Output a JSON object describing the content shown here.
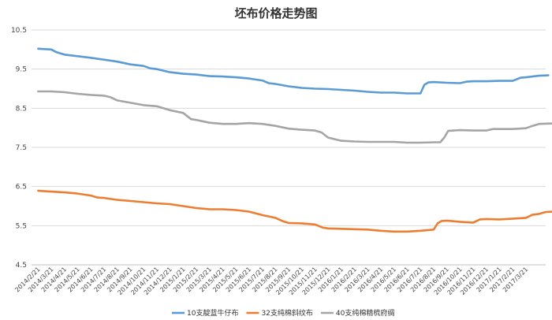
{
  "chart_data": {
    "type": "line",
    "title": "坯布价格走势图",
    "xlabel": "",
    "ylabel": "",
    "ylim": [
      4.5,
      10.5
    ],
    "yticks": [
      4.5,
      5.5,
      6.5,
      7.5,
      8.5,
      9.5,
      10.5
    ],
    "grid": "horizontal",
    "legend": "bottom",
    "x_tick_labels": [
      "2014/2/21",
      "2014/3/21",
      "2014/4/21",
      "2014/5/21",
      "2014/6/21",
      "2014/7/21",
      "2014/8/21",
      "2014/9/21",
      "2014/10/21",
      "2014/11/21",
      "2014/12/21",
      "2015/1/21",
      "2015/2/21",
      "2015/3/21",
      "2015/4/21",
      "2015/5/21",
      "2015/6/21",
      "2015/7/21",
      "2015/8/21",
      "2015/9/21",
      "2015/10/21",
      "2015/11/21",
      "2015/12/21",
      "2016/1/21",
      "2016/2/21",
      "2016/3/21",
      "2016/4/21",
      "2016/5/21",
      "2016/6/21",
      "2016/7/21",
      "2016/8/21",
      "2016/9/21",
      "2016/10/21",
      "2016/11/21",
      "2016/12/21",
      "2017/1/21",
      "2017/2/21",
      "2017/3/21"
    ],
    "series": [
      {
        "name": "10支靛蓝牛仔布",
        "color": "#5b9bd5",
        "points": [
          [
            0,
            10.02
          ],
          [
            1,
            10.0
          ],
          [
            1.4,
            9.93
          ],
          [
            2,
            9.87
          ],
          [
            3,
            9.83
          ],
          [
            4,
            9.79
          ],
          [
            4.6,
            9.76
          ],
          [
            5,
            9.74
          ],
          [
            6,
            9.69
          ],
          [
            7,
            9.62
          ],
          [
            8,
            9.58
          ],
          [
            8.5,
            9.52
          ],
          [
            9,
            9.5
          ],
          [
            10,
            9.42
          ],
          [
            11,
            9.38
          ],
          [
            12,
            9.36
          ],
          [
            13,
            9.32
          ],
          [
            14,
            9.31
          ],
          [
            15,
            9.29
          ],
          [
            16,
            9.26
          ],
          [
            17,
            9.21
          ],
          [
            17.5,
            9.14
          ],
          [
            18,
            9.12
          ],
          [
            19,
            9.06
          ],
          [
            20,
            9.02
          ],
          [
            21,
            9.0
          ],
          [
            22,
            8.99
          ],
          [
            23,
            8.97
          ],
          [
            24,
            8.95
          ],
          [
            25,
            8.92
          ],
          [
            26,
            8.9
          ],
          [
            27,
            8.9
          ],
          [
            28,
            8.88
          ],
          [
            29,
            8.88
          ],
          [
            29.3,
            9.1
          ],
          [
            29.6,
            9.16
          ],
          [
            30,
            9.17
          ],
          [
            31,
            9.15
          ],
          [
            32,
            9.14
          ],
          [
            32.5,
            9.18
          ],
          [
            33,
            9.19
          ],
          [
            34,
            9.19
          ],
          [
            35,
            9.2
          ],
          [
            36,
            9.2
          ],
          [
            36.6,
            9.28
          ],
          [
            37,
            9.29
          ],
          [
            38,
            9.33
          ],
          [
            38.7,
            9.34
          ]
        ]
      },
      {
        "name": "32支纯棉斜纹布",
        "color": "#ed7d31",
        "points": [
          [
            0,
            6.39
          ],
          [
            1,
            6.37
          ],
          [
            2,
            6.35
          ],
          [
            3,
            6.32
          ],
          [
            4,
            6.27
          ],
          [
            4.5,
            6.22
          ],
          [
            5,
            6.21
          ],
          [
            6,
            6.16
          ],
          [
            7,
            6.13
          ],
          [
            8,
            6.1
          ],
          [
            9,
            6.07
          ],
          [
            10,
            6.05
          ],
          [
            11,
            6.0
          ],
          [
            12,
            5.95
          ],
          [
            13,
            5.92
          ],
          [
            14,
            5.92
          ],
          [
            15,
            5.9
          ],
          [
            16,
            5.86
          ],
          [
            17,
            5.77
          ],
          [
            18,
            5.7
          ],
          [
            18.6,
            5.61
          ],
          [
            19,
            5.57
          ],
          [
            20,
            5.56
          ],
          [
            21,
            5.53
          ],
          [
            21.6,
            5.45
          ],
          [
            22,
            5.43
          ],
          [
            23,
            5.42
          ],
          [
            24,
            5.41
          ],
          [
            25,
            5.4
          ],
          [
            26,
            5.37
          ],
          [
            27,
            5.35
          ],
          [
            28,
            5.35
          ],
          [
            29,
            5.37
          ],
          [
            30,
            5.4
          ],
          [
            30.3,
            5.56
          ],
          [
            30.6,
            5.62
          ],
          [
            31,
            5.63
          ],
          [
            32,
            5.6
          ],
          [
            33,
            5.58
          ],
          [
            33.5,
            5.66
          ],
          [
            34,
            5.67
          ],
          [
            35,
            5.66
          ],
          [
            36,
            5.68
          ],
          [
            37,
            5.7
          ],
          [
            37.5,
            5.78
          ],
          [
            38,
            5.8
          ],
          [
            38.5,
            5.85
          ],
          [
            39,
            5.86
          ]
        ]
      },
      {
        "name": "40支纯棉精梳府绸",
        "color": "#a5a5a5",
        "points": [
          [
            0,
            8.93
          ],
          [
            1,
            8.93
          ],
          [
            2,
            8.91
          ],
          [
            3,
            8.87
          ],
          [
            4,
            8.84
          ],
          [
            5,
            8.82
          ],
          [
            5.5,
            8.78
          ],
          [
            6,
            8.7
          ],
          [
            7,
            8.64
          ],
          [
            8,
            8.58
          ],
          [
            9,
            8.55
          ],
          [
            10,
            8.45
          ],
          [
            11,
            8.38
          ],
          [
            11.6,
            8.22
          ],
          [
            12,
            8.2
          ],
          [
            13,
            8.13
          ],
          [
            14,
            8.1
          ],
          [
            15,
            8.1
          ],
          [
            16,
            8.12
          ],
          [
            17,
            8.1
          ],
          [
            18,
            8.05
          ],
          [
            19,
            7.98
          ],
          [
            20,
            7.95
          ],
          [
            21,
            7.93
          ],
          [
            21.5,
            7.88
          ],
          [
            22,
            7.75
          ],
          [
            23,
            7.67
          ],
          [
            24,
            7.65
          ],
          [
            25,
            7.64
          ],
          [
            26,
            7.64
          ],
          [
            27,
            7.64
          ],
          [
            28,
            7.62
          ],
          [
            29,
            7.62
          ],
          [
            30,
            7.63
          ],
          [
            30.5,
            7.63
          ],
          [
            30.8,
            7.75
          ],
          [
            31.1,
            7.92
          ],
          [
            32,
            7.94
          ],
          [
            33,
            7.93
          ],
          [
            34,
            7.93
          ],
          [
            34.5,
            7.97
          ],
          [
            35,
            7.97
          ],
          [
            36,
            7.97
          ],
          [
            37,
            7.99
          ],
          [
            37.5,
            8.05
          ],
          [
            38,
            8.1
          ],
          [
            39,
            8.11
          ],
          [
            39.5,
            8.13
          ]
        ]
      }
    ]
  }
}
